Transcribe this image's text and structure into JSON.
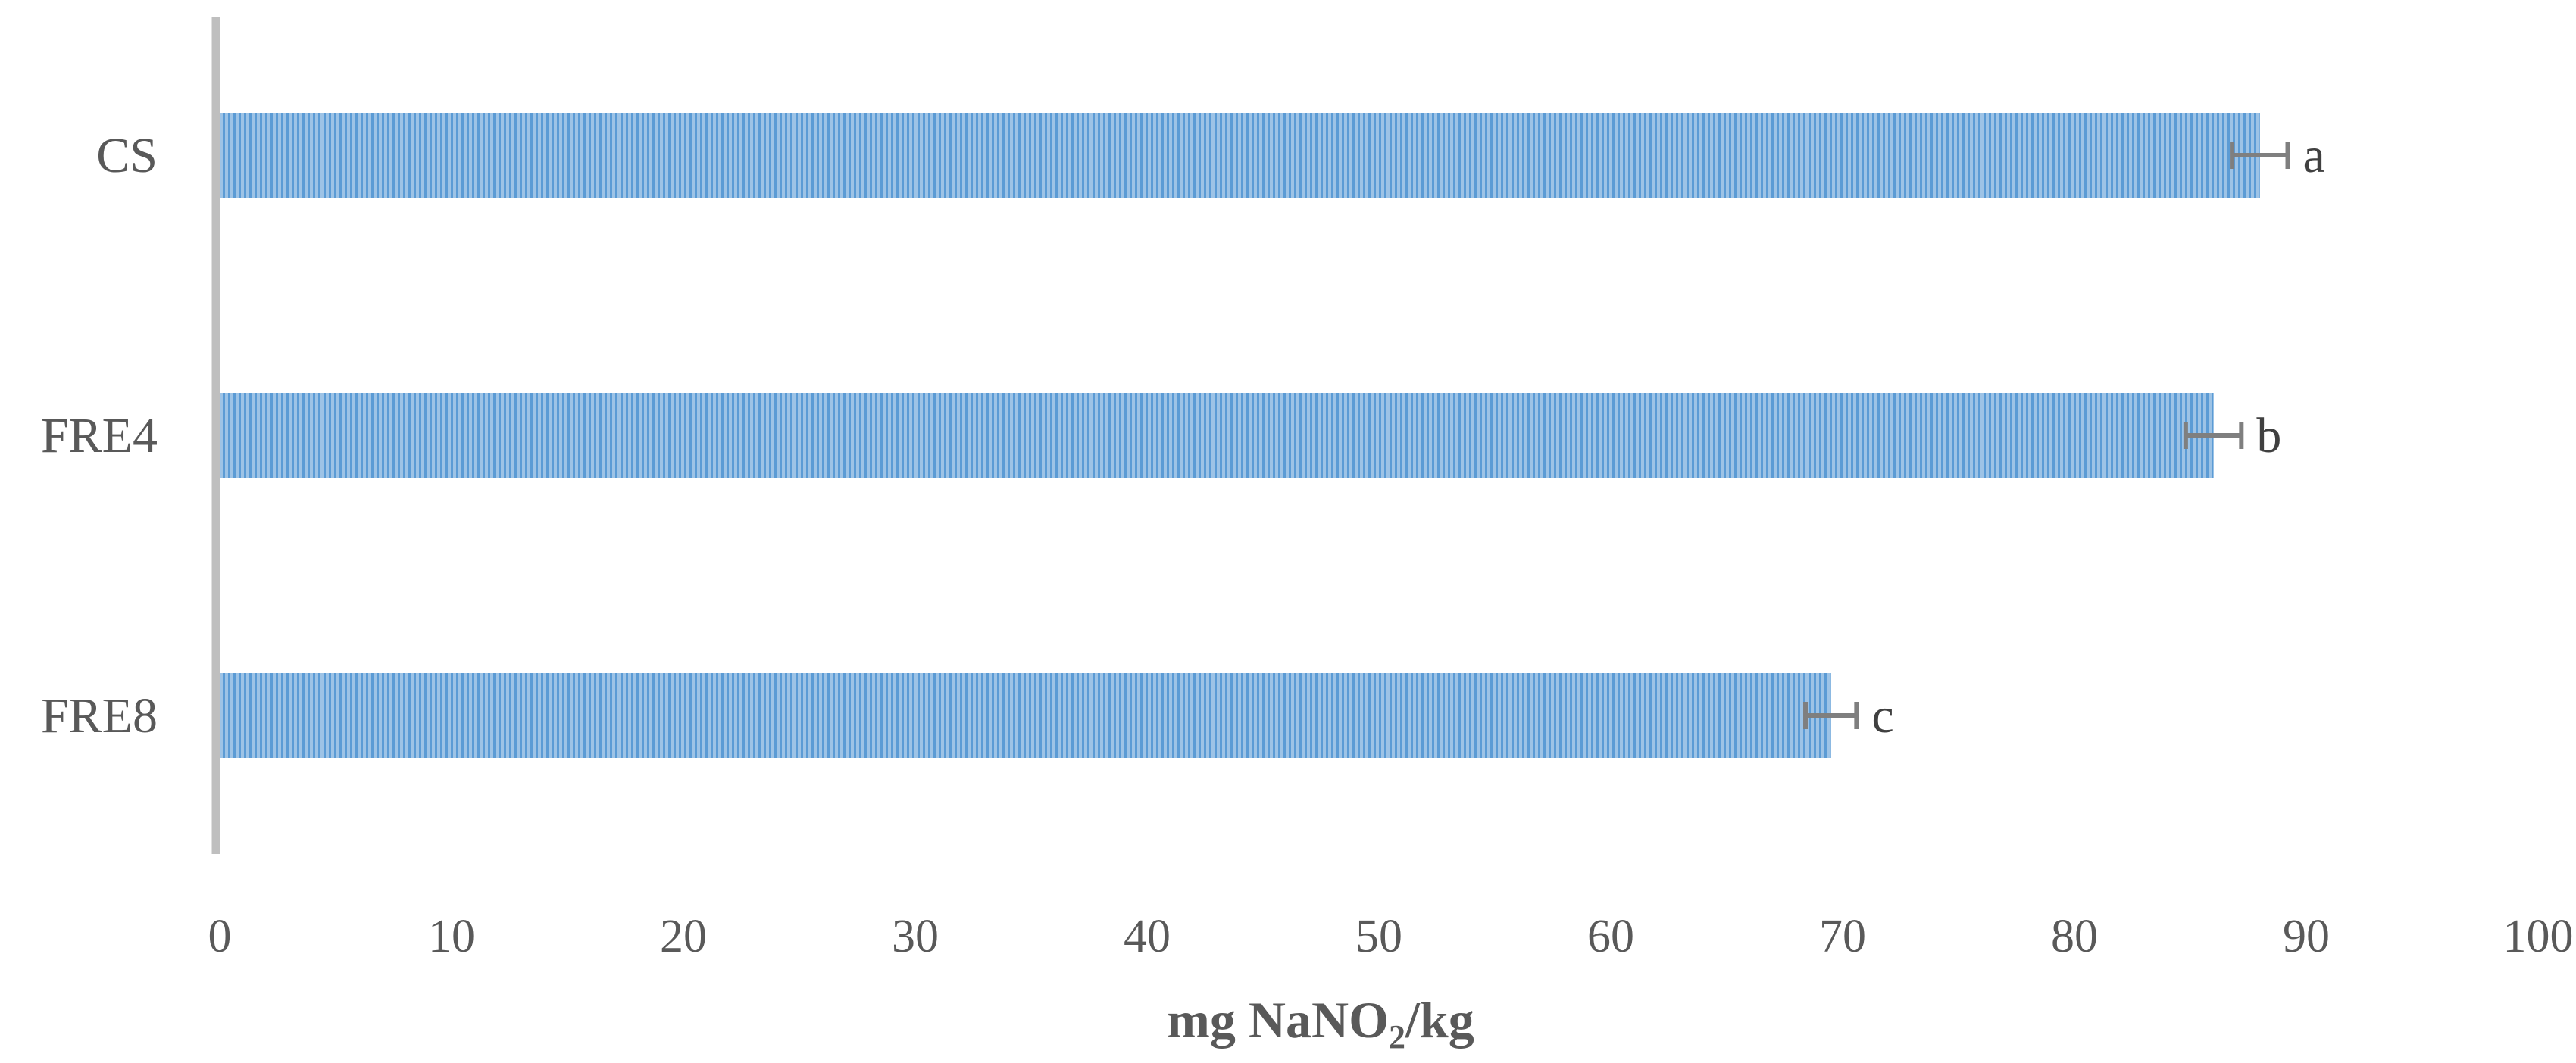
{
  "chart_data": {
    "type": "bar",
    "orientation": "horizontal",
    "categories": [
      "CS",
      "FRE4",
      "FRE8"
    ],
    "values": [
      88.0,
      86.0,
      69.5
    ],
    "errors": [
      1.2,
      1.2,
      1.1
    ],
    "significance_letters": [
      "a",
      "b",
      "c"
    ],
    "xlabel": {
      "prefix": "mg NaNO",
      "subscript": "2",
      "suffix": "/kg"
    },
    "xlim": [
      0,
      100
    ],
    "x_ticks": [
      "0",
      "10",
      "20",
      "30",
      "40",
      "50",
      "60",
      "70",
      "80",
      "90",
      "100"
    ],
    "grid": false,
    "legend": "none",
    "colors": {
      "bar_fill": "#9DC3E6",
      "bar_stripe": "#5B9BD5",
      "error_bar": "#7F7F7F",
      "axis_line": "#BFBFBF",
      "text": "#595959"
    }
  }
}
